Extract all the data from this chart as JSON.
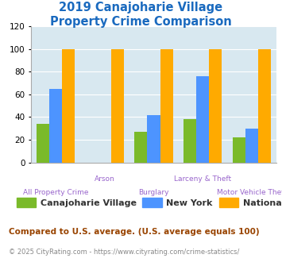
{
  "title_line1": "2019 Canajoharie Village",
  "title_line2": "Property Crime Comparison",
  "categories": [
    "All Property Crime",
    "Arson",
    "Burglary",
    "Larceny & Theft",
    "Motor Vehicle Theft"
  ],
  "canajoharie": [
    34,
    0,
    27,
    38,
    22
  ],
  "newyork": [
    65,
    0,
    42,
    76,
    30
  ],
  "national": [
    100,
    100,
    100,
    100,
    100
  ],
  "color_canajoharie": "#7aba2a",
  "color_newyork": "#4d94ff",
  "color_national": "#ffaa00",
  "ylim": [
    0,
    120
  ],
  "yticks": [
    0,
    20,
    40,
    60,
    80,
    100,
    120
  ],
  "bg_color": "#d8e8f0",
  "title_color": "#1a6abf",
  "xlabel_color": "#9966cc",
  "legend_labels": [
    "Canajoharie Village",
    "New York",
    "National"
  ],
  "legend_text_color": "#333333",
  "footnote1": "Compared to U.S. average. (U.S. average equals 100)",
  "footnote2": "© 2025 CityRating.com - https://www.cityrating.com/crime-statistics/",
  "footnote1_color": "#994400",
  "footnote2_color": "#888888",
  "grid_color": "#ffffff"
}
